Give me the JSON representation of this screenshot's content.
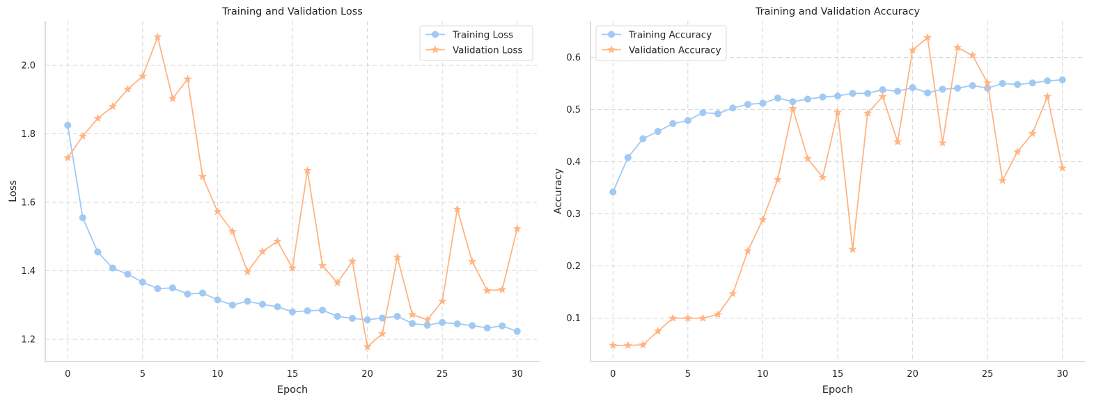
{
  "colors": {
    "training": "#a1c9f4",
    "validation": "#ffb482"
  },
  "chart_data": [
    {
      "type": "line",
      "title": "Training and Validation Loss",
      "xlabel": "Epoch",
      "ylabel": "Loss",
      "xlim": [
        -1.5,
        31.5
      ],
      "ylim": [
        1.135,
        2.13
      ],
      "xticks": [
        0,
        5,
        10,
        15,
        20,
        25,
        30
      ],
      "yticks": [
        1.2,
        1.4,
        1.6,
        1.8,
        2.0
      ],
      "ytick_labels": [
        "1.2",
        "1.4",
        "1.6",
        "1.8",
        "2.0"
      ],
      "grid": true,
      "legend_position": "top-right",
      "x": [
        0,
        1,
        2,
        3,
        4,
        5,
        6,
        7,
        8,
        9,
        10,
        11,
        12,
        13,
        14,
        15,
        16,
        17,
        18,
        19,
        20,
        21,
        22,
        23,
        24,
        25,
        26,
        27,
        28,
        29,
        30
      ],
      "series": [
        {
          "name": "Training Loss",
          "marker": "circle",
          "values": [
            1.825,
            1.555,
            1.455,
            1.408,
            1.39,
            1.367,
            1.348,
            1.35,
            1.332,
            1.335,
            1.315,
            1.3,
            1.311,
            1.302,
            1.295,
            1.28,
            1.283,
            1.285,
            1.267,
            1.261,
            1.257,
            1.262,
            1.267,
            1.246,
            1.241,
            1.249,
            1.245,
            1.24,
            1.233,
            1.239,
            1.223
          ]
        },
        {
          "name": "Validation Loss",
          "marker": "star",
          "values": [
            1.73,
            1.793,
            1.845,
            1.88,
            1.93,
            1.968,
            2.083,
            1.903,
            1.96,
            1.675,
            1.573,
            1.515,
            1.397,
            1.456,
            1.486,
            1.408,
            1.693,
            1.415,
            1.365,
            1.428,
            1.178,
            1.216,
            1.44,
            1.272,
            1.257,
            1.311,
            1.58,
            1.427,
            1.342,
            1.345,
            1.523
          ]
        }
      ]
    },
    {
      "type": "line",
      "title": "Training and Validation Accuracy",
      "xlabel": "Epoch",
      "ylabel": "Accuracy",
      "xlim": [
        -1.5,
        31.5
      ],
      "ylim": [
        0.017,
        0.67
      ],
      "xticks": [
        0,
        5,
        10,
        15,
        20,
        25,
        30
      ],
      "yticks": [
        0.1,
        0.2,
        0.3,
        0.4,
        0.5,
        0.6
      ],
      "ytick_labels": [
        "0.1",
        "0.2",
        "0.3",
        "0.4",
        "0.5",
        "0.6"
      ],
      "grid": true,
      "legend_position": "top-left",
      "x": [
        0,
        1,
        2,
        3,
        4,
        5,
        6,
        7,
        8,
        9,
        10,
        11,
        12,
        13,
        14,
        15,
        16,
        17,
        18,
        19,
        20,
        21,
        22,
        23,
        24,
        25,
        26,
        27,
        28,
        29,
        30
      ],
      "series": [
        {
          "name": "Training Accuracy",
          "marker": "circle",
          "values": [
            0.342,
            0.408,
            0.444,
            0.458,
            0.473,
            0.479,
            0.494,
            0.492,
            0.503,
            0.51,
            0.512,
            0.522,
            0.515,
            0.52,
            0.524,
            0.526,
            0.531,
            0.531,
            0.538,
            0.535,
            0.542,
            0.532,
            0.539,
            0.541,
            0.546,
            0.541,
            0.55,
            0.548,
            0.551,
            0.555,
            0.557
          ]
        },
        {
          "name": "Validation Accuracy",
          "marker": "star",
          "values": [
            0.048,
            0.048,
            0.049,
            0.075,
            0.1,
            0.1,
            0.1,
            0.107,
            0.147,
            0.229,
            0.289,
            0.366,
            0.502,
            0.406,
            0.37,
            0.495,
            0.232,
            0.493,
            0.525,
            0.438,
            0.614,
            0.638,
            0.436,
            0.619,
            0.604,
            0.551,
            0.364,
            0.419,
            0.454,
            0.525,
            0.388
          ]
        }
      ]
    }
  ]
}
